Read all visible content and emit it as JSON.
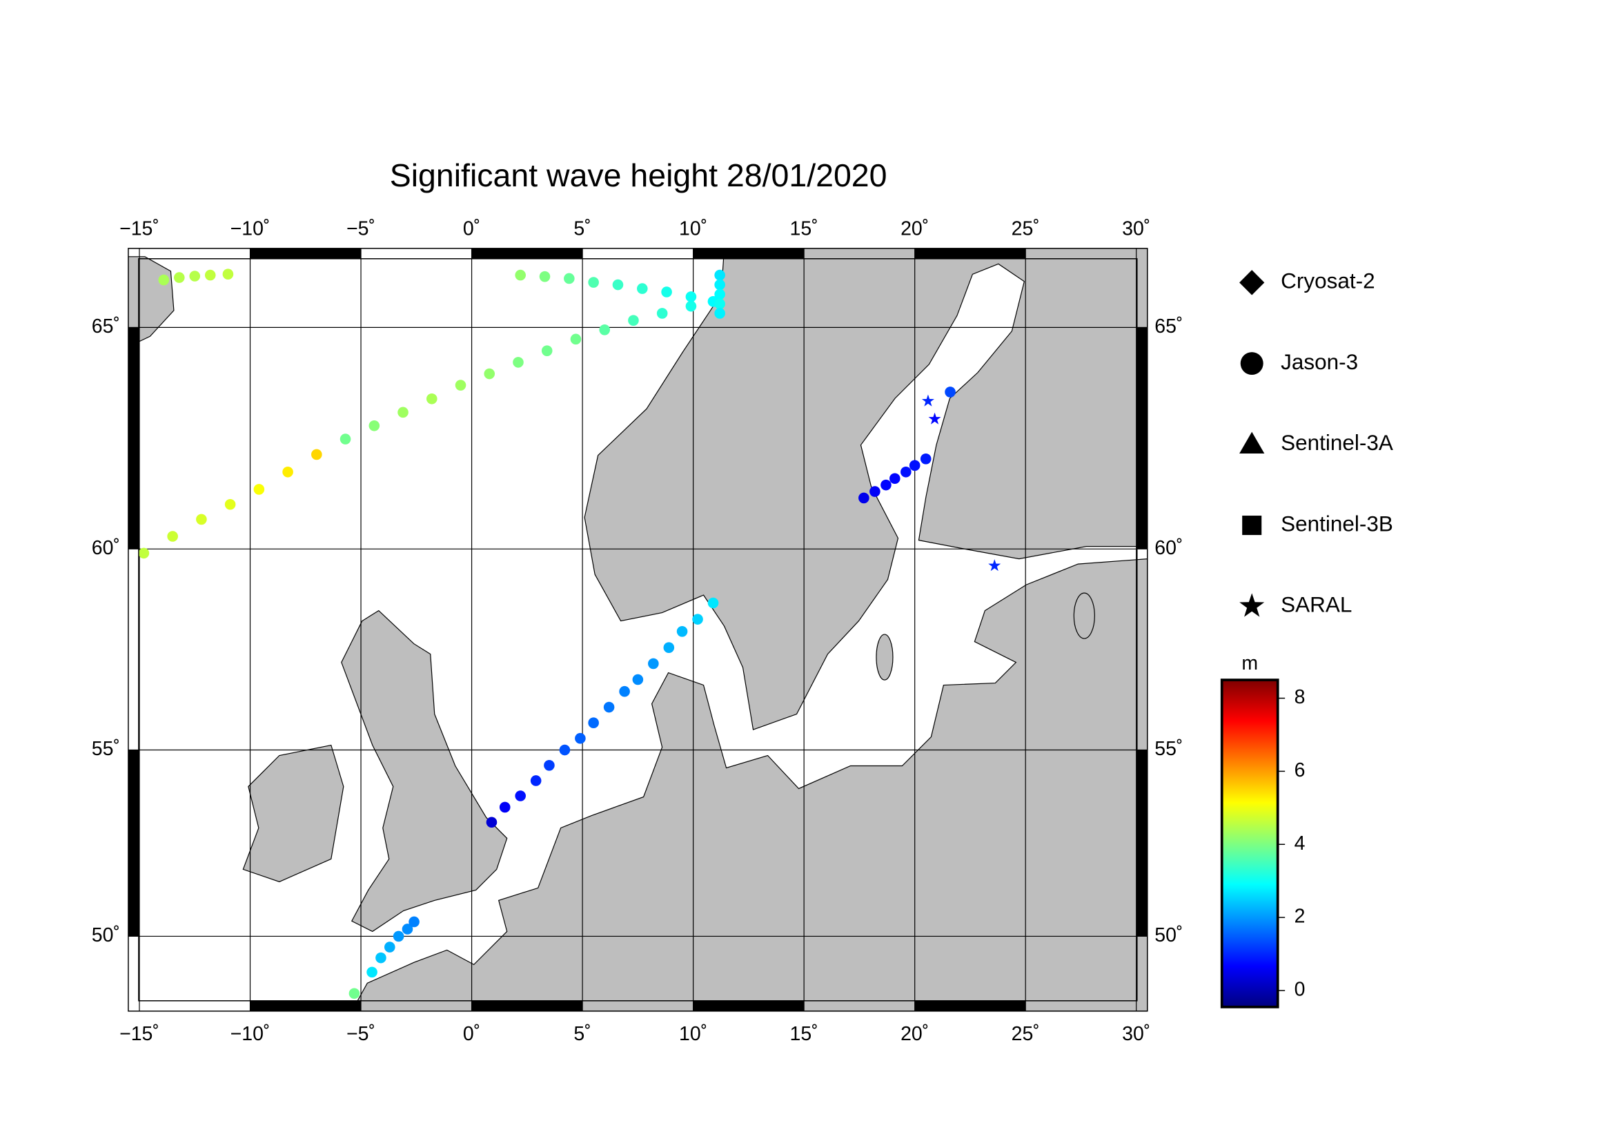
{
  "chart_data": {
    "type": "map",
    "title": "Significant wave height 28/01/2020",
    "xlim": [
      -15.5,
      30.5
    ],
    "ylim": [
      47.9,
      66.65
    ],
    "xticks": [
      {
        "value": -15,
        "label": "−15˚"
      },
      {
        "value": -10,
        "label": "−10˚"
      },
      {
        "value": -5,
        "label": "−5˚"
      },
      {
        "value": 0,
        "label": "0˚"
      },
      {
        "value": 5,
        "label": "5˚"
      },
      {
        "value": 10,
        "label": "10˚"
      },
      {
        "value": 15,
        "label": "15˚"
      },
      {
        "value": 20,
        "label": "20˚"
      },
      {
        "value": 25,
        "label": "25˚"
      },
      {
        "value": 30,
        "label": "30˚"
      }
    ],
    "yticks": [
      {
        "value": 50,
        "label": "50˚"
      },
      {
        "value": 55,
        "label": "55˚"
      },
      {
        "value": 60,
        "label": "60˚"
      },
      {
        "value": 65,
        "label": "65˚"
      }
    ],
    "grid": true,
    "legend": [
      {
        "label": "Cryosat-2",
        "marker": "diamond"
      },
      {
        "label": "Jason-3",
        "marker": "circle"
      },
      {
        "label": "Sentinel-3A",
        "marker": "triangle"
      },
      {
        "label": "Sentinel-3B",
        "marker": "square"
      },
      {
        "label": "SARAL",
        "marker": "star"
      }
    ],
    "colorbar": {
      "label": "m",
      "colormap": "jet",
      "lim": [
        -0.45,
        8.5
      ],
      "ticks": [
        0,
        2,
        4,
        6,
        8
      ]
    },
    "series": [
      {
        "name": "Jason-3",
        "marker": "circle",
        "lon": [
          0.9,
          1.5,
          2.2,
          2.9,
          3.5,
          4.2,
          4.9,
          5.5,
          6.2,
          6.9,
          7.5,
          8.2,
          8.9,
          9.5,
          10.2,
          10.9
        ],
        "lat": [
          53.1,
          53.5,
          53.8,
          54.2,
          54.6,
          55.0,
          55.3,
          55.7,
          56.1,
          56.5,
          56.8,
          57.2,
          57.6,
          58.0,
          58.3,
          58.7
        ],
        "values": [
          0.3,
          0.6,
          0.8,
          1.0,
          1.2,
          1.4,
          1.5,
          1.6,
          1.7,
          1.8,
          1.9,
          2.0,
          2.2,
          2.3,
          2.5,
          2.7
        ]
      },
      {
        "name": "Jason-3",
        "marker": "circle",
        "lon": [
          -5.3,
          -4.5,
          -4.1,
          -3.7,
          -3.3,
          -2.9,
          -2.6
        ],
        "lat": [
          48.4,
          49.0,
          49.4,
          49.7,
          50.0,
          50.2,
          50.4
        ],
        "values": [
          3.9,
          2.7,
          2.4,
          2.2,
          2.0,
          1.9,
          1.8
        ]
      },
      {
        "name": "Jason-3",
        "marker": "circle",
        "lon": [
          17.7,
          18.2,
          18.7,
          19.1,
          19.6,
          20.0,
          20.5,
          21.6
        ],
        "lat": [
          61.2,
          61.35,
          61.5,
          61.65,
          61.8,
          61.95,
          62.1,
          63.6
        ],
        "values": [
          0.5,
          0.6,
          0.7,
          0.7,
          0.8,
          0.8,
          0.9,
          1.3
        ]
      },
      {
        "name": "Jason-3",
        "marker": "circle",
        "lon": [
          -14.8,
          -13.5,
          -12.2,
          -10.9,
          -9.6,
          -8.3,
          -7.0,
          -5.7,
          -4.4,
          -3.1,
          -1.8,
          -0.5,
          0.8,
          2.1,
          3.4,
          4.7,
          6.0,
          7.3,
          8.6,
          9.9,
          10.9
        ],
        "lat": [
          59.9,
          60.3,
          60.7,
          61.05,
          61.4,
          61.8,
          62.2,
          62.55,
          62.85,
          63.15,
          63.45,
          63.75,
          64.0,
          64.25,
          64.5,
          64.75,
          64.95,
          65.15,
          65.3,
          65.45,
          65.55
        ],
        "values": [
          4.6,
          4.7,
          4.8,
          4.9,
          5.1,
          5.3,
          5.5,
          3.9,
          4.1,
          4.3,
          4.4,
          4.3,
          4.2,
          4.0,
          3.9,
          3.9,
          3.7,
          3.5,
          3.3,
          3.1,
          2.9
        ]
      },
      {
        "name": "Jason-3",
        "marker": "circle",
        "lon": [
          2.2,
          3.3,
          4.4,
          5.5,
          6.6,
          7.7,
          8.8,
          9.9,
          10.9
        ],
        "lat": [
          66.1,
          66.07,
          66.03,
          65.95,
          65.9,
          65.82,
          65.75,
          65.65,
          65.55
        ],
        "values": [
          4.2,
          4.0,
          3.8,
          3.6,
          3.4,
          3.3,
          3.1,
          3.0,
          2.9
        ]
      },
      {
        "name": "Jason-3",
        "marker": "circle",
        "lon": [
          11.2,
          11.2,
          11.2,
          11.2,
          11.2
        ],
        "lat": [
          66.1,
          65.9,
          65.7,
          65.5,
          65.3
        ],
        "values": [
          2.7,
          2.8,
          2.9,
          3.0,
          2.8
        ]
      },
      {
        "name": "Jason-3",
        "marker": "circle",
        "lon": [
          -13.9,
          -13.2,
          -12.5,
          -11.8,
          -11.0
        ],
        "lat": [
          66.0,
          66.05,
          66.08,
          66.1,
          66.12
        ],
        "values": [
          4.4,
          4.5,
          4.5,
          4.6,
          4.6
        ]
      },
      {
        "name": "SARAL",
        "marker": "star",
        "lon": [
          20.6,
          20.9,
          23.6
        ],
        "lat": [
          63.4,
          63.0,
          59.6
        ],
        "values": [
          1.0,
          0.7,
          1.0
        ]
      }
    ]
  }
}
